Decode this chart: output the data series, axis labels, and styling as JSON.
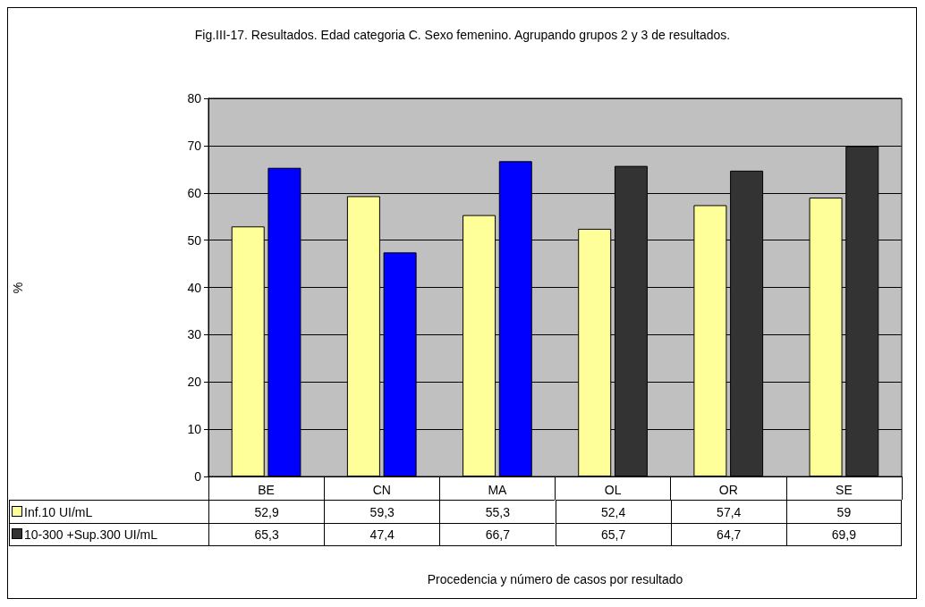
{
  "chart_data": {
    "type": "bar",
    "title": "Fig.III-17. Resultados. Edad categoria C. Sexo femenino. Agrupando grupos 2 y 3 de resultados.",
    "annotations": [
      "%",
      "Procedencia y número de casos por resultado"
    ],
    "categories": [
      "BE",
      "CN",
      "MA",
      "OL",
      "OR",
      "SE"
    ],
    "series": [
      {
        "name": "Inf.10 UI/mL",
        "color": "#ffff99",
        "values": [
          52.9,
          59.3,
          55.3,
          52.4,
          57.4,
          59
        ],
        "value_labels": [
          "52,9",
          "59,3",
          "55,3",
          "52,4",
          "57,4",
          "59"
        ]
      },
      {
        "name": "10-300 +Sup.300 UI/mL",
        "color": "#333333",
        "colors": [
          "#0000ff",
          "#0000ff",
          "#0000ff",
          "#333333",
          "#333333",
          "#333333"
        ],
        "values": [
          65.3,
          47.4,
          66.7,
          65.7,
          64.7,
          69.9
        ],
        "value_labels": [
          "65,3",
          "47,4",
          "66,7",
          "65,7",
          "64,7",
          "69,9"
        ]
      }
    ],
    "ylim": [
      0,
      80
    ],
    "yticks": [
      0,
      10,
      20,
      30,
      40,
      50,
      60,
      70,
      80
    ],
    "grid": "y",
    "legend": "bottom left"
  }
}
